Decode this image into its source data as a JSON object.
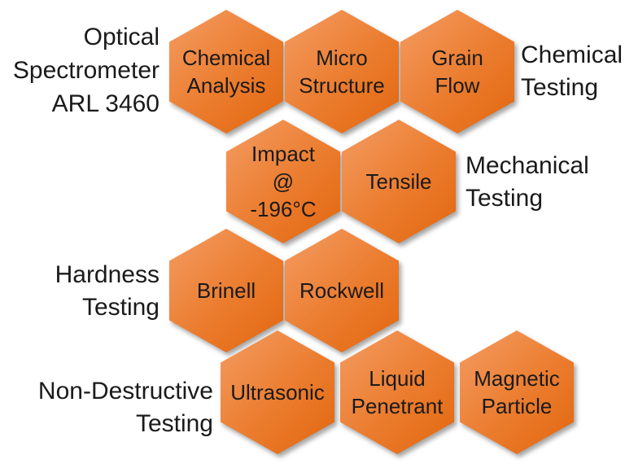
{
  "diagram": {
    "title": "Material testing methods hexagon diagram",
    "colors": {
      "background": "#ffffff",
      "hexagon_gradient_start": "#f49c63",
      "hexagon_gradient_mid": "#eb7c2e",
      "hexagon_gradient_end": "#e2660e",
      "text": "#1a1a1a"
    },
    "side_labels": [
      {
        "id": "optical-spectrometer",
        "text": "Optical\nSpectrometer\nARL 3460"
      },
      {
        "id": "chemical-testing",
        "text": "Chemical\nTesting"
      },
      {
        "id": "mechanical-testing",
        "text": "Mechanical\nTesting"
      },
      {
        "id": "hardness-testing",
        "text": "Hardness\nTesting"
      },
      {
        "id": "non-destructive-testing",
        "text": "Non-Destructive\nTesting"
      }
    ],
    "hexagons": [
      {
        "id": "chemical-analysis",
        "text": "Chemical\nAnalysis"
      },
      {
        "id": "micro-structure",
        "text": "Micro\nStructure"
      },
      {
        "id": "grain-flow",
        "text": "Grain\nFlow"
      },
      {
        "id": "impact",
        "text": "Impact\n@\n-196°C"
      },
      {
        "id": "tensile",
        "text": "Tensile"
      },
      {
        "id": "brinell",
        "text": "Brinell"
      },
      {
        "id": "rockwell",
        "text": "Rockwell"
      },
      {
        "id": "ultrasonic",
        "text": "Ultrasonic"
      },
      {
        "id": "liquid-penetrant",
        "text": "Liquid\nPenetrant"
      },
      {
        "id": "magnetic-particle",
        "text": "Magnetic\nParticle"
      }
    ]
  }
}
